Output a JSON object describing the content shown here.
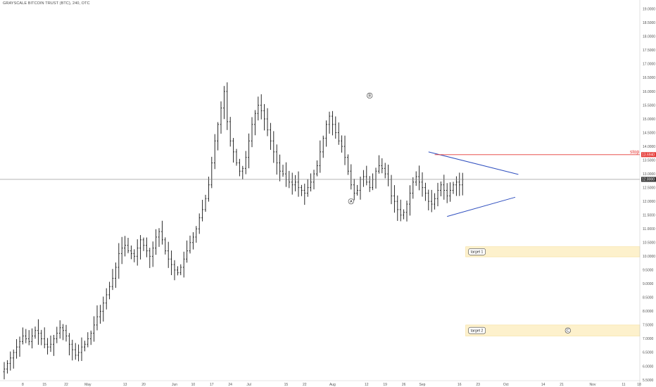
{
  "header": {
    "title": "GRAYSCALE BITCOIN TRUST (BTC), 240, OTC"
  },
  "chart_data": {
    "type": "ohlc",
    "ylim": [
      5.5,
      19.2
    ],
    "y_ticks": [
      "19.0000",
      "18.5000",
      "18.0000",
      "17.5000",
      "17.0000",
      "16.5000",
      "16.0000",
      "15.5000",
      "15.0000",
      "14.5000",
      "14.0000",
      "13.5000",
      "13.0000",
      "12.5000",
      "12.0000",
      "11.5000",
      "11.0000",
      "10.5000",
      "10.0000",
      "9.5000",
      "9.0000",
      "8.5000",
      "8.0000",
      "7.5000",
      "7.0000",
      "6.5000",
      "6.0000",
      "5.5000"
    ],
    "x_ticks": [
      {
        "label": "8",
        "bar": 6
      },
      {
        "label": "15",
        "bar": 13
      },
      {
        "label": "22",
        "bar": 20
      },
      {
        "label": "May",
        "bar": 27
      },
      {
        "label": "13",
        "bar": 39
      },
      {
        "label": "20",
        "bar": 45
      },
      {
        "label": "Jun",
        "bar": 55
      },
      {
        "label": "10",
        "bar": 61
      },
      {
        "label": "17",
        "bar": 67
      },
      {
        "label": "24",
        "bar": 73
      },
      {
        "label": "Jul",
        "bar": 79
      },
      {
        "label": "15",
        "bar": 91
      },
      {
        "label": "22",
        "bar": 97
      },
      {
        "label": "Aug",
        "bar": 106
      },
      {
        "label": "12",
        "bar": 117
      },
      {
        "label": "19",
        "bar": 123
      },
      {
        "label": "26",
        "bar": 129
      },
      {
        "label": "Sep",
        "bar": 135
      },
      {
        "label": "16",
        "bar": 147
      },
      {
        "label": "23",
        "bar": 153
      },
      {
        "label": "Oct",
        "bar": 162
      },
      {
        "label": "14",
        "bar": 174
      },
      {
        "label": "21",
        "bar": 180
      },
      {
        "label": "Nov",
        "bar": 190
      },
      {
        "label": "11",
        "bar": 200
      },
      {
        "label": "18",
        "bar": 205
      }
    ],
    "series_close": [
      5.9,
      6.1,
      6.3,
      6.5,
      6.7,
      6.9,
      7.1,
      7.0,
      6.9,
      7.1,
      7.3,
      7.2,
      7.0,
      6.8,
      6.7,
      6.8,
      7.0,
      7.2,
      7.4,
      7.3,
      7.1,
      6.8,
      6.6,
      6.4,
      6.5,
      6.7,
      6.8,
      7.0,
      7.2,
      7.5,
      7.8,
      8.0,
      8.3,
      8.6,
      8.9,
      9.2,
      9.6,
      10.1,
      10.3,
      10.4,
      10.2,
      10.1,
      10.0,
      10.3,
      10.6,
      10.4,
      10.2,
      10.0,
      10.3,
      10.7,
      10.9,
      10.6,
      10.2,
      9.9,
      9.7,
      9.5,
      9.4,
      9.6,
      9.9,
      10.2,
      10.5,
      10.7,
      11.0,
      11.4,
      11.7,
      12.1,
      12.6,
      13.4,
      14.2,
      14.8,
      15.4,
      16.0,
      14.9,
      14.2,
      13.8,
      13.4,
      13.1,
      13.2,
      13.6,
      14.2,
      14.8,
      15.2,
      15.5,
      15.3,
      15.0,
      14.6,
      14.2,
      13.8,
      13.4,
      13.1,
      13.0,
      12.8,
      12.7,
      12.6,
      12.7,
      12.5,
      12.4,
      12.3,
      12.5,
      12.7,
      13.0,
      13.3,
      13.8,
      14.3,
      14.8,
      15.1,
      14.8,
      14.5,
      14.2,
      14.0,
      13.6,
      13.1,
      12.6,
      12.3,
      12.4,
      12.8,
      12.9,
      12.7,
      12.5,
      12.8,
      13.1,
      13.3,
      13.2,
      13.0,
      12.8,
      12.2,
      12.0,
      11.7,
      11.5,
      11.6,
      11.9,
      12.3,
      12.7,
      12.9,
      12.7,
      12.5,
      12.3,
      12.0,
      11.9,
      12.1,
      12.4,
      12.6,
      12.4,
      12.2,
      12.4,
      12.6,
      12.7,
      12.6,
      12.8
    ],
    "annotations": [
      {
        "text": "A",
        "bar": 112,
        "y": 12.0
      },
      {
        "text": "B",
        "bar": 118,
        "y": 15.85
      },
      {
        "text": "C",
        "bar": 182,
        "y": 7.3
      }
    ],
    "stop": {
      "label": "stop",
      "value": 13.7,
      "badge": "13.6940"
    },
    "last_price": {
      "value": 12.8,
      "badge": "12.8000"
    },
    "targets": [
      {
        "label": "target 1",
        "top": 10.35,
        "bottom": 9.98
      },
      {
        "label": "target 2",
        "top": 7.5,
        "bottom": 7.1
      }
    ],
    "triangle": {
      "upper": [
        [
          137,
          13.8
        ],
        [
          166,
          12.98
        ]
      ],
      "lower": [
        [
          143,
          11.45
        ],
        [
          165,
          12.15
        ]
      ]
    },
    "colors": {
      "bars": "#111111",
      "stop": "#e53935",
      "trend": "#2f4fbf",
      "target_fill": "#fdf1cc",
      "target_border": "#f3d98a",
      "price_line": "#888888"
    }
  }
}
